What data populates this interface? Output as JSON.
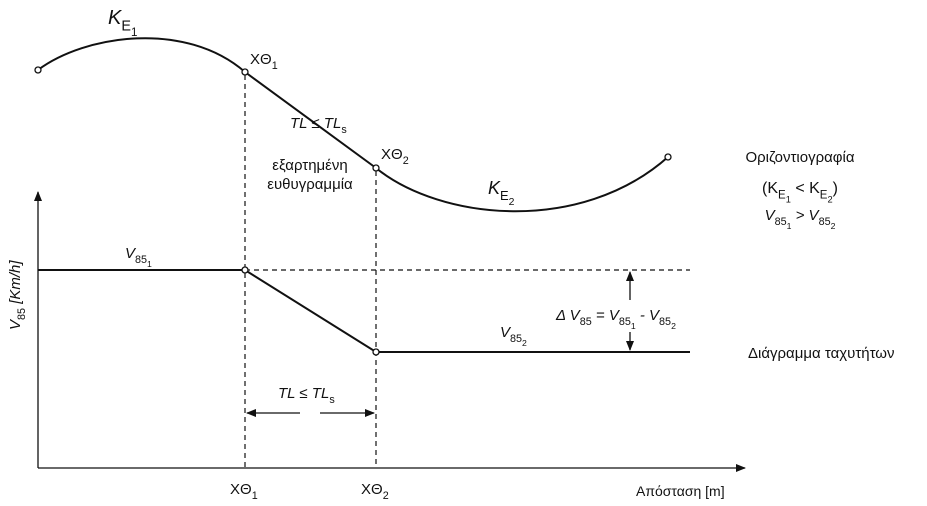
{
  "labels": {
    "top_curve_label": [
      "K",
      "E",
      "1"
    ],
    "point_1": [
      "XΘ",
      "1"
    ],
    "transition_length": [
      "TL ≤ TL",
      "s"
    ],
    "point_2": [
      "XΘ",
      "2"
    ],
    "dependent_tangent": [
      "εξαρτημένη",
      "ευθυγραμμία"
    ],
    "bottom_curve_label": [
      "K",
      "E",
      "2"
    ],
    "plan_view": {
      "title": "Οριζοντιογραφία",
      "condition": [
        "(",
        "K",
        "E",
        "1",
        " < ",
        "K",
        "E",
        "2",
        ")"
      ],
      "speeds": [
        "V",
        "85",
        "1",
        " > ",
        "V",
        "85",
        "2"
      ]
    },
    "y_axis_label": [
      "V",
      "85",
      " [Km/h]"
    ],
    "speed_1": [
      "V",
      "85",
      "1"
    ],
    "speed_difference": [
      "Δ V",
      "85",
      " = ",
      "V",
      "85",
      "1",
      " - ",
      "V",
      "85",
      "2"
    ],
    "speed_2": [
      "V",
      "85",
      "2"
    ],
    "speed_diagram": "Διάγραμμα ταχυτήτων",
    "lower_transition_length": [
      "TL ≤ TL",
      "s"
    ],
    "axis_points": [
      [
        "XΘ",
        "1"
      ],
      [
        "XΘ",
        "2"
      ]
    ],
    "x_axis_label": "Απόσταση [m]"
  }
}
